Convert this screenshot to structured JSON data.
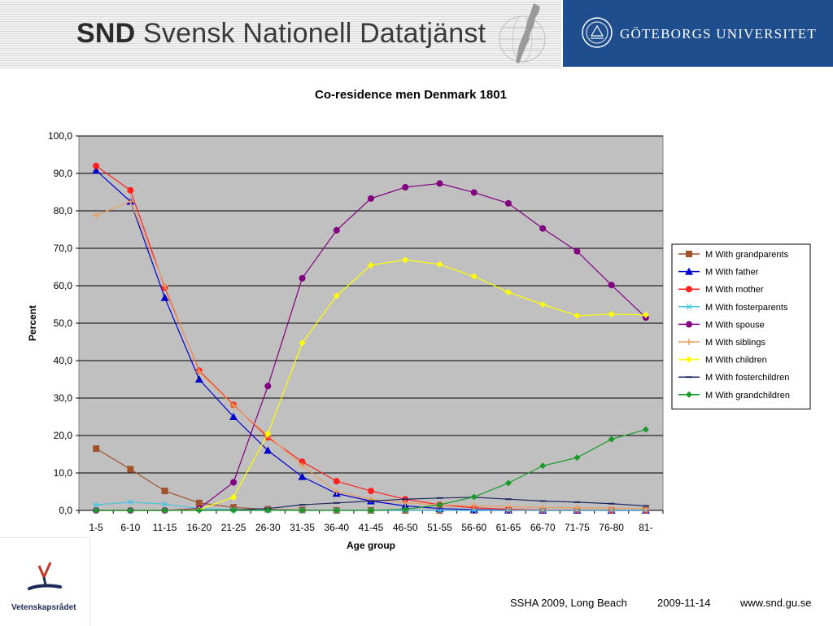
{
  "header": {
    "snd_bold": "SND",
    "snd_rest": "Svensk Nationell Datatjänst",
    "university": "GÖTEBORGS UNIVERSITET"
  },
  "footer": {
    "logo_text": "Vetenskapsrådet",
    "conference": "SSHA 2009, Long Beach",
    "date": "2009-11-14",
    "url": "www.snd.gu.se"
  },
  "colors": {
    "plot_bg": "#c0c0c0",
    "header_blue": "#1f4e8f"
  },
  "chart_data": {
    "type": "line",
    "title": "Co-residence men Denmark 1801",
    "xlabel": "Age group",
    "ylabel": "Percent",
    "ylim": [
      0,
      100
    ],
    "yticks": [
      "0,0",
      "10,0",
      "20,0",
      "30,0",
      "40,0",
      "50,0",
      "60,0",
      "70,0",
      "80,0",
      "90,0",
      "100,0"
    ],
    "grid": true,
    "legend_position": "right",
    "categories": [
      "1-5",
      "6-10",
      "11-15",
      "16-20",
      "21-25",
      "26-30",
      "31-35",
      "36-40",
      "41-45",
      "46-50",
      "51-55",
      "56-60",
      "61-65",
      "66-70",
      "71-75",
      "76-80",
      "81-"
    ],
    "series": [
      {
        "name": "M With grandparents",
        "color": "#a0522d",
        "marker": "square",
        "values": [
          16.5,
          11.0,
          5.2,
          2.0,
          0.8,
          0.3,
          0.1,
          0.0,
          0.0,
          0.0,
          0.0,
          0.0,
          0.0,
          0.0,
          0.0,
          0.0,
          0.0
        ]
      },
      {
        "name": "M With father",
        "color": "#0000cc",
        "marker": "triangle",
        "values": [
          90.8,
          82.5,
          56.8,
          35.0,
          25.0,
          16.0,
          9.0,
          4.5,
          2.5,
          1.2,
          0.5,
          0.2,
          0.1,
          0.0,
          0.0,
          0.0,
          0.0
        ]
      },
      {
        "name": "M With mother",
        "color": "#ff2020",
        "marker": "circle",
        "values": [
          92.0,
          85.5,
          59.5,
          37.3,
          28.2,
          19.5,
          13.0,
          7.8,
          5.2,
          3.0,
          1.5,
          0.7,
          0.3,
          0.1,
          0.1,
          0.0,
          0.0
        ]
      },
      {
        "name": "M With fosterparents",
        "color": "#46c4e0",
        "marker": "asterisk",
        "values": [
          1.5,
          2.2,
          1.7,
          0.5,
          0.2,
          0.1,
          0.0,
          0.0,
          0.0,
          0.0,
          0.0,
          0.0,
          0.0,
          0.0,
          0.0,
          0.0,
          0.0
        ]
      },
      {
        "name": "M With spouse",
        "color": "#800080",
        "marker": "circle",
        "values": [
          0.0,
          0.0,
          0.0,
          0.5,
          7.5,
          33.2,
          62.0,
          74.8,
          83.3,
          86.3,
          87.3,
          84.9,
          82.0,
          75.3,
          69.2,
          60.2,
          51.5
        ]
      },
      {
        "name": "M With siblings",
        "color": "#e8a060",
        "marker": "plus",
        "values": [
          78.8,
          82.5,
          60.0,
          37.0,
          28.0,
          20.0,
          12.0,
          5.0,
          3.0,
          2.0,
          1.5,
          1.2,
          1.0,
          0.8,
          0.7,
          0.6,
          0.5
        ]
      },
      {
        "name": "M With children",
        "color": "#ffff00",
        "marker": "diamond",
        "values": [
          0.0,
          0.0,
          0.0,
          0.2,
          3.5,
          20.5,
          44.7,
          57.3,
          65.5,
          66.9,
          65.7,
          62.5,
          58.3,
          55.0,
          52.0,
          52.4,
          52.2
        ]
      },
      {
        "name": "M With fosterchildren",
        "color": "#1f2a60",
        "marker": "dash",
        "values": [
          0.0,
          0.0,
          0.0,
          0.0,
          0.1,
          0.5,
          1.5,
          2.0,
          2.5,
          3.0,
          3.3,
          3.5,
          3.0,
          2.5,
          2.2,
          1.8,
          1.2
        ]
      },
      {
        "name": "M With grandchildren",
        "color": "#1a9a2a",
        "marker": "diamond",
        "values": [
          0.0,
          0.0,
          0.0,
          0.0,
          0.0,
          0.0,
          0.0,
          0.0,
          0.0,
          0.3,
          1.5,
          3.6,
          7.3,
          11.9,
          14.1,
          19.0,
          21.6
        ]
      }
    ]
  }
}
